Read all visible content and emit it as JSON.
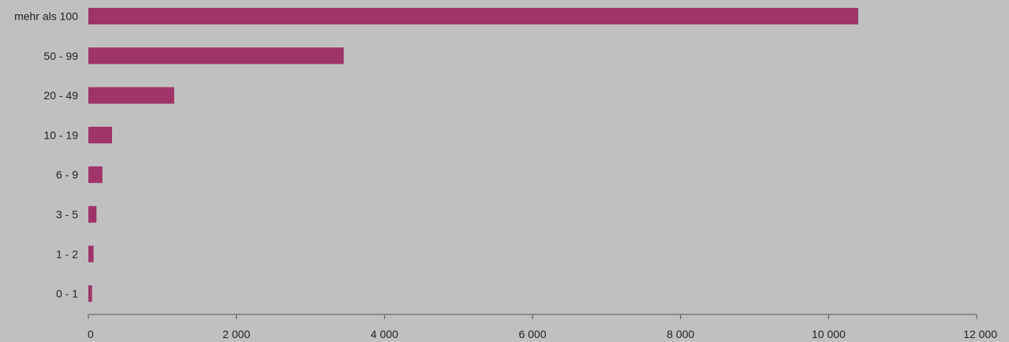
{
  "chart_data": {
    "type": "bar",
    "orientation": "horizontal",
    "categories": [
      "mehr als 100",
      "50 - 99",
      "20 - 49",
      "10 - 19",
      "6 - 9",
      "3 - 5",
      "1 - 2",
      "0 - 1"
    ],
    "values": [
      10400,
      3450,
      1160,
      320,
      190,
      110,
      70,
      50
    ],
    "xlim": [
      0,
      12000
    ],
    "xticks": [
      0,
      2000,
      4000,
      6000,
      8000,
      10000,
      12000
    ],
    "xtick_labels": [
      "0",
      "2 000",
      "4 000",
      "6 000",
      "8 000",
      "10 000",
      "12 000"
    ],
    "title": "",
    "xlabel": "",
    "ylabel": "",
    "grid": false,
    "legend": "none",
    "colors": {
      "bar": "#9e3468",
      "background": "#c0c0c0",
      "axis": "#555555",
      "text": "#222222"
    }
  }
}
